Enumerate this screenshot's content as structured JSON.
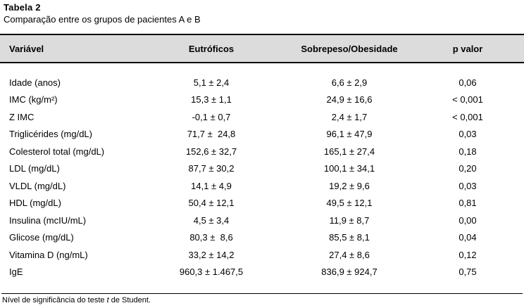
{
  "title": "Tabela 2",
  "subtitle": "Comparação entre os grupos de pacientes A e B",
  "table": {
    "columns": [
      "Variável",
      "Eutróficos",
      "Sobrepeso/Obesidade",
      "p valor"
    ],
    "rows": [
      {
        "variable": "Idade (anos)",
        "eutroficos": "5,1 ± 2,4",
        "sobrepeso": "6,6 ± 2,9",
        "p": "0,06"
      },
      {
        "variable": "IMC (kg/m²)",
        "eutroficos": "15,3 ± 1,1",
        "sobrepeso": "24,9 ± 16,6",
        "p": "< 0,001"
      },
      {
        "variable": "Z IMC",
        "eutroficos": "-0,1 ± 0,7",
        "sobrepeso": "2,4 ± 1,7",
        "p": "< 0,001"
      },
      {
        "variable": "Triglicérides (mg/dL)",
        "eutroficos": "71,7 ±  24,8",
        "sobrepeso": "96,1 ± 47,9",
        "p": "0,03"
      },
      {
        "variable": "Colesterol total (mg/dL)",
        "eutroficos": "152,6 ± 32,7",
        "sobrepeso": "165,1 ± 27,4",
        "p": "0,18"
      },
      {
        "variable": "LDL (mg/dL)",
        "eutroficos": "87,7 ± 30,2",
        "sobrepeso": "100,1 ± 34,1",
        "p": "0,20"
      },
      {
        "variable": "VLDL (mg/dL)",
        "eutroficos": "14,1 ± 4,9",
        "sobrepeso": "19,2 ± 9,6",
        "p": "0,03"
      },
      {
        "variable": "HDL (mg/dL)",
        "eutroficos": "50,4 ± 12,1",
        "sobrepeso": "49,5 ± 12,1",
        "p": "0,81"
      },
      {
        "variable": "Insulina (mcIU/mL)",
        "eutroficos": "4,5 ± 3,4",
        "sobrepeso": "11,9 ± 8,7",
        "p": "0,00"
      },
      {
        "variable": "Glicose (mg/dL)",
        "eutroficos": "80,3 ±  8,6",
        "sobrepeso": "85,5 ± 8,1",
        "p": "0,04"
      },
      {
        "variable": "Vitamina D (ng/mL)",
        "eutroficos": "33,2 ± 14,2",
        "sobrepeso": "27,4 ± 8,6",
        "p": "0,12"
      },
      {
        "variable": "IgE",
        "eutroficos": "960,3 ± 1.467,5",
        "sobrepeso": "836,9 ± 924,7",
        "p": "0,75"
      }
    ]
  },
  "footnote": {
    "prefix": "Nível de significância do teste ",
    "italic_term": "t",
    "suffix": " de Student."
  },
  "colors": {
    "page_bg": "#ffffff",
    "header_bg": "#dcdcdc",
    "rule": "#000000",
    "text": "#000000"
  }
}
